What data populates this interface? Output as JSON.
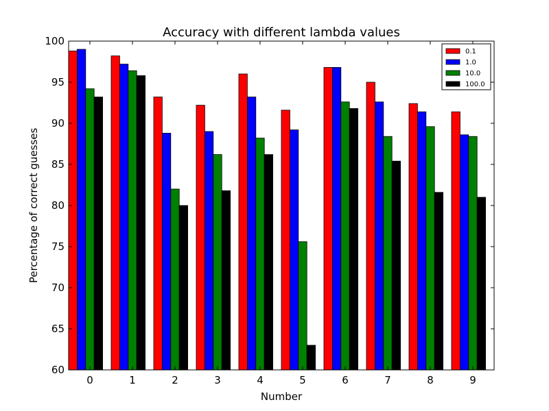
{
  "chart_data": {
    "type": "bar",
    "title": "Accuracy with different lambda values",
    "xlabel": "Number",
    "ylabel": "Percentage of correct guesses",
    "ylim": [
      60,
      100
    ],
    "yticks": [
      60,
      65,
      70,
      75,
      80,
      85,
      90,
      95,
      100
    ],
    "grid": false,
    "legend_position": "top-right",
    "categories": [
      "0",
      "1",
      "2",
      "3",
      "4",
      "5",
      "6",
      "7",
      "8",
      "9"
    ],
    "series": [
      {
        "name": "0.1",
        "color": "#ff0000",
        "values": [
          98.8,
          98.2,
          93.2,
          92.2,
          96.0,
          91.6,
          96.8,
          95.0,
          92.4,
          91.4
        ]
      },
      {
        "name": "1.0",
        "color": "#0000ff",
        "values": [
          99.0,
          97.2,
          88.8,
          89.0,
          93.2,
          89.2,
          96.8,
          92.6,
          91.4,
          88.6
        ]
      },
      {
        "name": "10.0",
        "color": "#008000",
        "values": [
          94.2,
          96.4,
          82.0,
          86.2,
          88.2,
          75.6,
          92.6,
          88.4,
          89.6,
          88.4
        ]
      },
      {
        "name": "100.0",
        "color": "#000000",
        "values": [
          93.2,
          95.8,
          80.0,
          81.8,
          86.2,
          63.0,
          91.8,
          85.4,
          81.6,
          81.0
        ]
      }
    ]
  }
}
